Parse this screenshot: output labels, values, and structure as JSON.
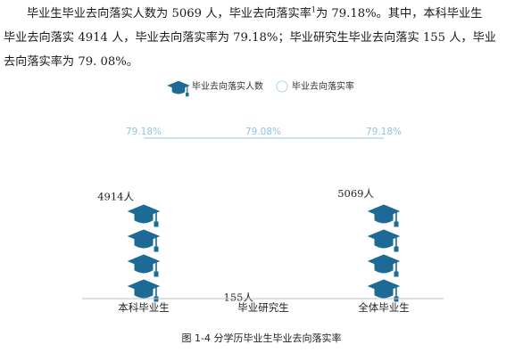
{
  "paragraph": {
    "line1_a": "毕业生毕业去向落实人数为 5069 人，毕业去向落实率",
    "line1_sup": "1",
    "line1_b": "为 79.18%。其中，本科毕业生",
    "line2": "毕业去向落实 4914 人，毕业去向落实率为 79.18%；毕业研究生毕业去向落实 155 人，毕业",
    "line3": "去向落实率为 79. 08%。"
  },
  "caption": "图 1-4  分学历毕业生毕业去向落实率",
  "colors": {
    "count_series": "#1c6a95",
    "rate_series": "#a9d4ec",
    "axis": "#bfbfbf"
  },
  "icons": {
    "count_series": "graduation-cap-icon",
    "rate_series": "circle-marker-icon"
  },
  "chart_data": {
    "type": "pictograph-bar+line",
    "categories": [
      "本科毕业生",
      "毕业研究生",
      "全体毕业生"
    ],
    "series": [
      {
        "name": "毕业去向落实人数",
        "type": "pictograph",
        "values": [
          4914,
          155,
          5069
        ],
        "value_labels": [
          "4914人",
          "155人",
          "5069人"
        ]
      },
      {
        "name": "毕业去向落实率",
        "type": "line",
        "values": [
          79.18,
          79.08,
          79.18
        ],
        "value_labels": [
          "79.18%",
          "79.08%",
          "79.18%"
        ]
      }
    ],
    "legend_position": "top-center",
    "grid": false,
    "ylim_count": [
      0,
      5069
    ]
  }
}
